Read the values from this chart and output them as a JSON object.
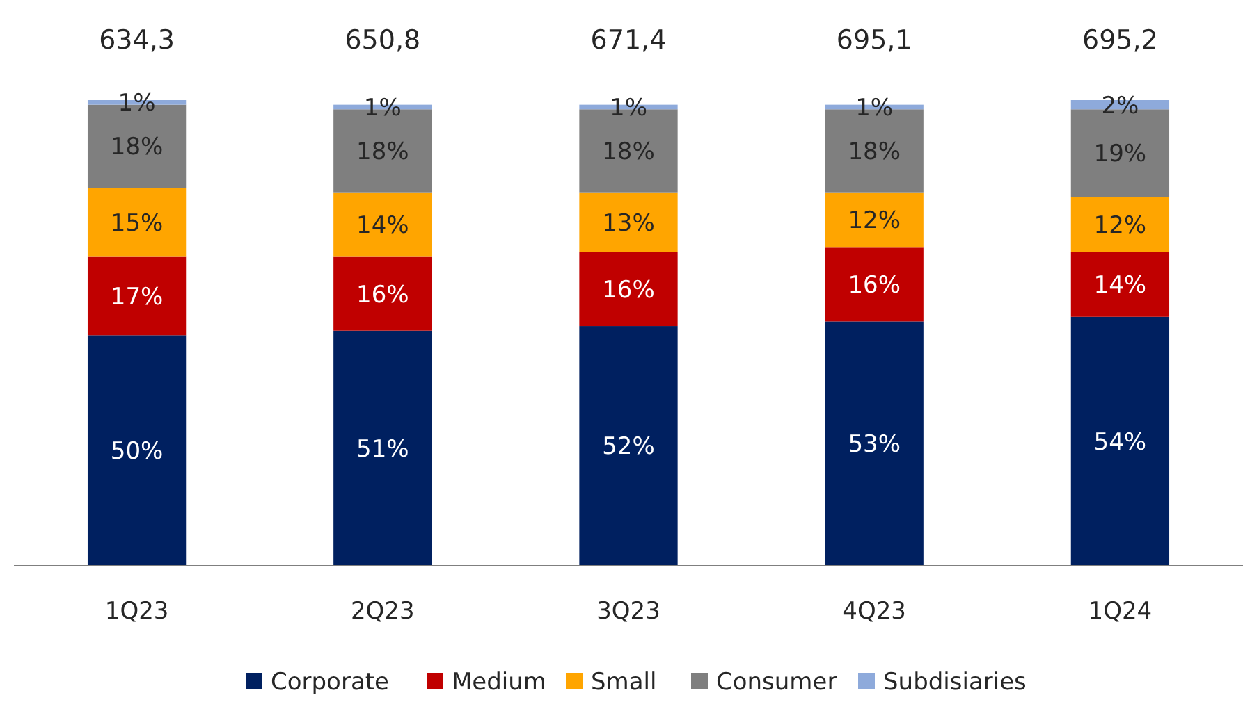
{
  "chart_data": {
    "type": "bar",
    "stacked": true,
    "legend": "bottom",
    "categories": [
      "1Q23",
      "2Q23",
      "3Q23",
      "4Q23",
      "1Q24"
    ],
    "series": [
      {
        "name": "Corporate",
        "color": "#002060",
        "values": [
          50,
          51,
          52,
          53,
          54
        ],
        "value_labels": [
          "50%",
          "51%",
          "52%",
          "53%",
          "54%"
        ]
      },
      {
        "name": "Medium",
        "color": "#c00000",
        "values": [
          17,
          16,
          16,
          16,
          14
        ],
        "value_labels": [
          "17%",
          "16%",
          "16%",
          "16%",
          "14%"
        ]
      },
      {
        "name": "Small",
        "color": "#ffa500",
        "values": [
          15,
          14,
          13,
          12,
          12
        ],
        "value_labels": [
          "15%",
          "14%",
          "13%",
          "12%",
          "12%"
        ]
      },
      {
        "name": "Consumer",
        "color": "#7f7f7f",
        "values": [
          18,
          18,
          18,
          18,
          19
        ],
        "value_labels": [
          "18%",
          "18%",
          "18%",
          "18%",
          "19%"
        ]
      },
      {
        "name": "Subdisiaries",
        "color": "#8eaadb",
        "values": [
          1,
          1,
          1,
          1,
          2
        ],
        "value_labels": [
          "1%",
          "1%",
          "1%",
          "1%",
          "2%"
        ]
      }
    ],
    "annotations": [
      "634,3",
      "650,8",
      "671,4",
      "695,1",
      "695,2"
    ]
  }
}
